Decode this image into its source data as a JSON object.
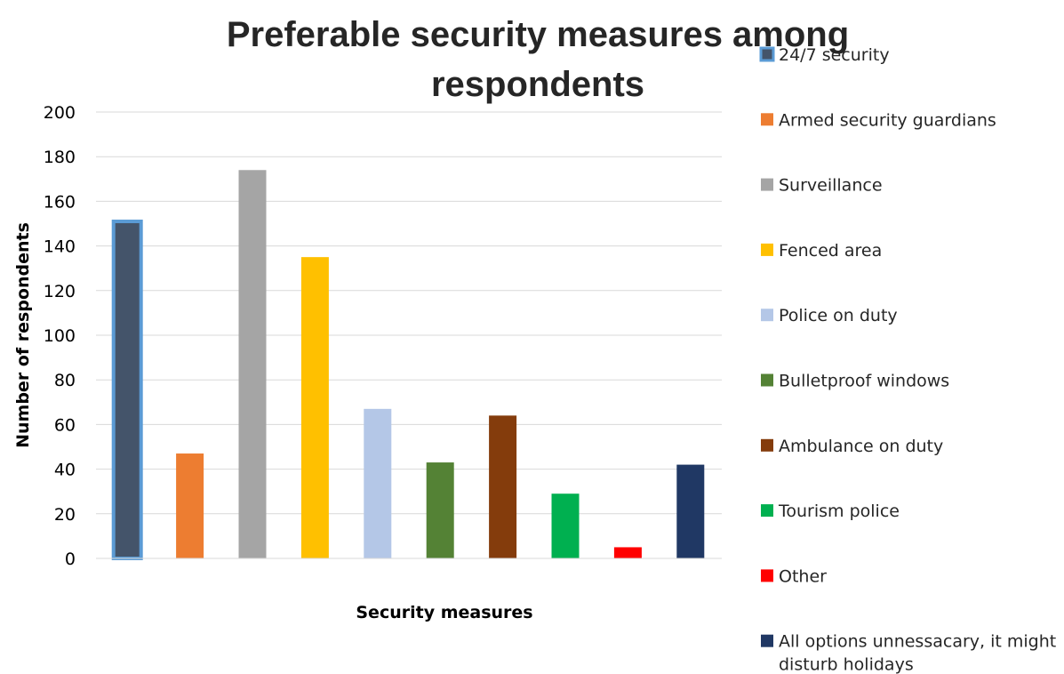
{
  "chart_data": {
    "type": "bar",
    "title": "Preferable security measures among respondents",
    "title_lines": [
      "Preferable security measures among",
      "respondents"
    ],
    "xlabel": "Security measures",
    "ylabel": "Number of respondents",
    "ylim": [
      0,
      200
    ],
    "yticks": [
      "0",
      "20",
      "40",
      "60",
      "80",
      "100",
      "120",
      "140",
      "160",
      "180",
      "200"
    ],
    "grid": true,
    "legend_position": "right",
    "categories": [
      "24/7 security",
      "Armed security guardians",
      "Surveillance",
      "Fenced area",
      "Police on duty",
      "Bulletproof windows",
      "Ambulance on duty",
      "Tourism police",
      "Other",
      "All options unnessacary, it might disturb holidays"
    ],
    "legend_lines": [
      [
        "24/7 security"
      ],
      [
        "Armed security guardians"
      ],
      [
        "Surveillance"
      ],
      [
        "Fenced area"
      ],
      [
        "Police on duty"
      ],
      [
        "Bulletproof windows"
      ],
      [
        "Ambulance on duty"
      ],
      [
        "Tourism police"
      ],
      [
        "Other"
      ],
      [
        "All options unnessacary, it might",
        "disturb holidays"
      ]
    ],
    "values": [
      151,
      47,
      174,
      135,
      67,
      43,
      64,
      29,
      5,
      42
    ],
    "colors": [
      "#44546A",
      "#ED7D31",
      "#A5A5A5",
      "#FFC000",
      "#B4C7E7",
      "#548235",
      "#843C0C",
      "#00B050",
      "#FF0000",
      "#203864"
    ],
    "highlight_color": "#5B9BD5"
  }
}
